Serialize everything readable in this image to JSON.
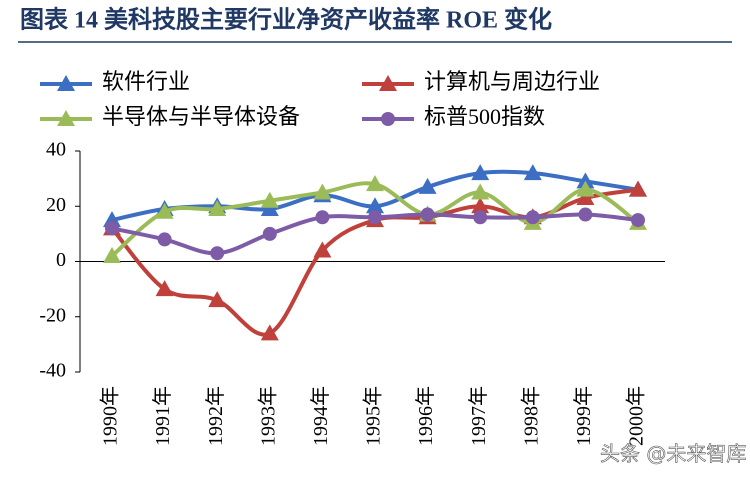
{
  "chart_data": {
    "type": "line",
    "title": "图表 14 美科技股主要行业净资产收益率 ROE 变化",
    "categories": [
      "1990年",
      "1991年",
      "1992年",
      "1993年",
      "1994年",
      "1995年",
      "1996年",
      "1997年",
      "1998年",
      "1999年",
      "2000年"
    ],
    "series": [
      {
        "name": "软件行业",
        "color": "#3c6fc4",
        "marker": "triangle",
        "values": [
          15,
          19,
          20,
          19,
          24,
          20,
          27,
          32,
          32,
          29,
          26
        ]
      },
      {
        "name": "计算机与周边行业",
        "color": "#c0403b",
        "marker": "triangle",
        "values": [
          12,
          -10,
          -14,
          -26,
          4,
          15,
          16,
          20,
          16,
          23,
          26
        ]
      },
      {
        "name": "半导体与半导体设备",
        "color": "#9bbb59",
        "marker": "triangle",
        "values": [
          2,
          18,
          19,
          22,
          25,
          28,
          17,
          25,
          14,
          26,
          14
        ]
      },
      {
        "name": "标普500指数",
        "color": "#7d5ba6",
        "marker": "circle",
        "values": [
          12,
          8,
          3,
          10,
          16,
          16,
          17,
          16,
          16,
          17,
          15
        ]
      }
    ],
    "ylim": [
      -40,
      40
    ],
    "yticks": [
      -40,
      -20,
      0,
      20,
      40
    ],
    "watermark": "头条 @未来智库"
  }
}
